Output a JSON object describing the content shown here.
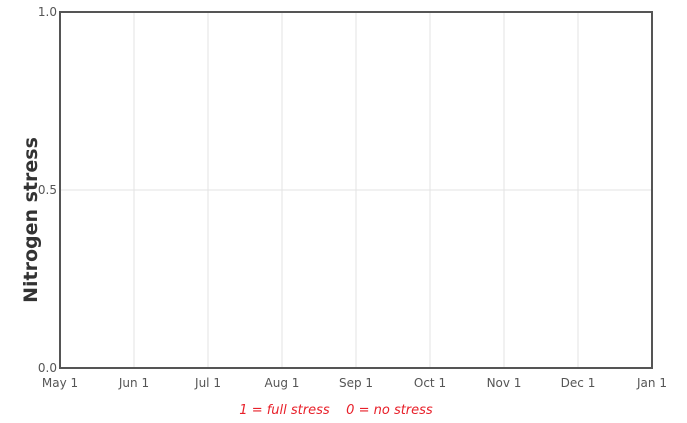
{
  "chart_data": {
    "type": "line",
    "title": "",
    "xlabel": "",
    "ylabel": "Nitrogen stress",
    "x_ticks": [
      "May 1",
      "Jun 1",
      "Jul 1",
      "Aug 1",
      "Sep 1",
      "Oct 1",
      "Nov 1",
      "Dec 1",
      "Jan 1"
    ],
    "y_ticks": [
      "0.0",
      "0.5",
      "1.0"
    ],
    "ylim": [
      0,
      1
    ],
    "grid": true,
    "series": [],
    "annotation": "1 = full stress    0 = no stress"
  },
  "colors": {
    "axis": "#555555",
    "grid": "#e3e3e3",
    "annotation": "#e8202a"
  }
}
